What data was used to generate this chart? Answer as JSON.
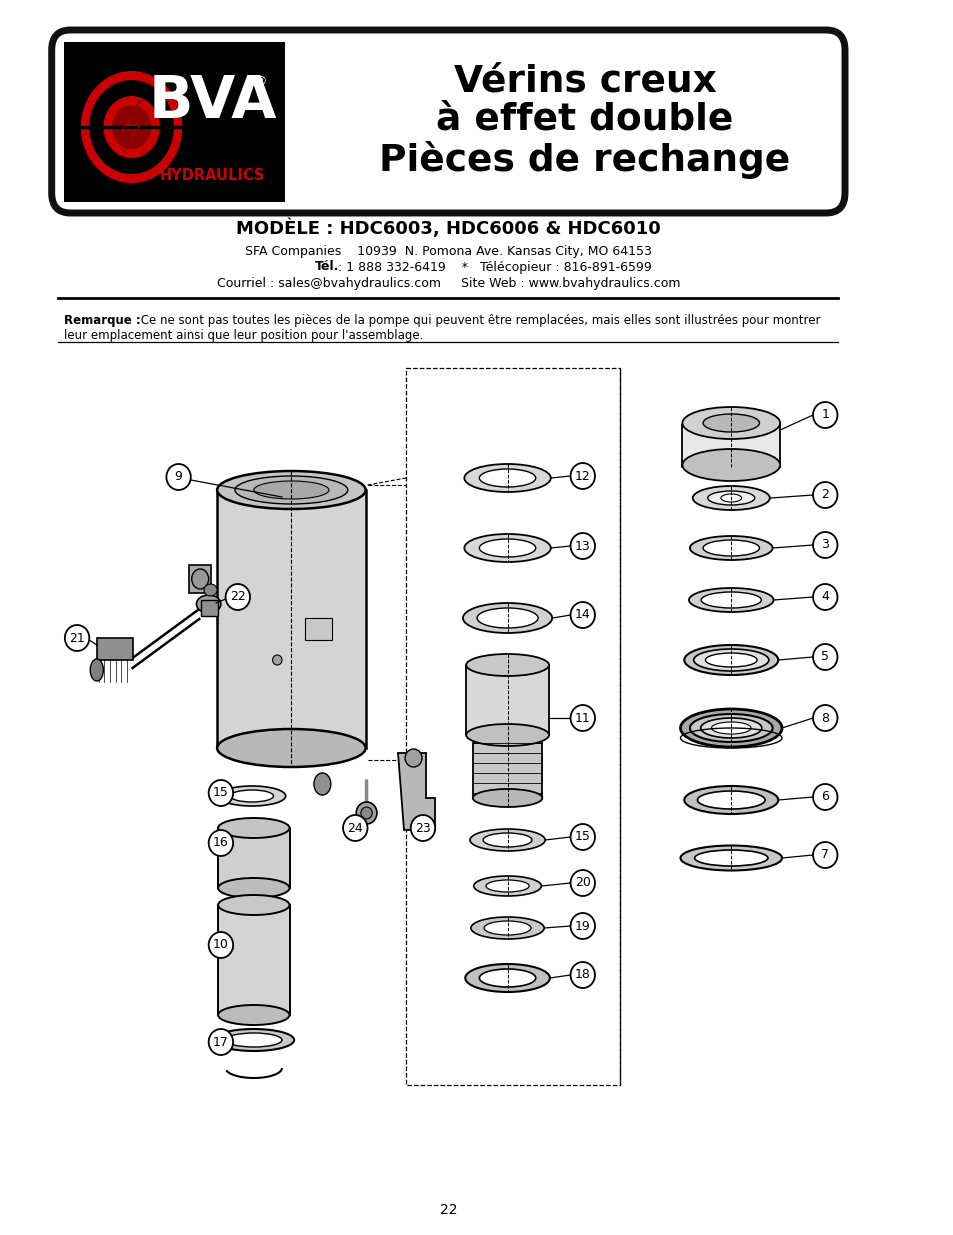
{
  "page_bg": "#ffffff",
  "title_line1": "Vérins creux",
  "title_line2": "à effet double",
  "title_line3": "Pièces de rechange",
  "title_fontsize": 27,
  "model_text": "MODÈLE : HDC6003, HDC6006 & HDC6010",
  "model_fontsize": 13,
  "company_line1": "SFA Companies    10939  N. Pomona Ave. Kansas City, MO 64153",
  "company_line2_bold": "Tél.",
  "company_line2_rest": " : 1 888 332-6419    *   Télécopieur : 816-891-6599",
  "company_line3": "Courriel : sales@bvahydraulics.com     Site Web : www.bvahydraulics.com",
  "company_fontsize": 9,
  "note_bold": "Remarque :",
  "note_text1": " Ce ne sont pas toutes les pièces de la pompe qui peuvent être remplacées, mais elles sont illustrées pour montrer",
  "note_text2": "leur emplacement ainsi que leur position pour l'assemblage.",
  "note_fontsize": 8.5,
  "page_number": "22"
}
